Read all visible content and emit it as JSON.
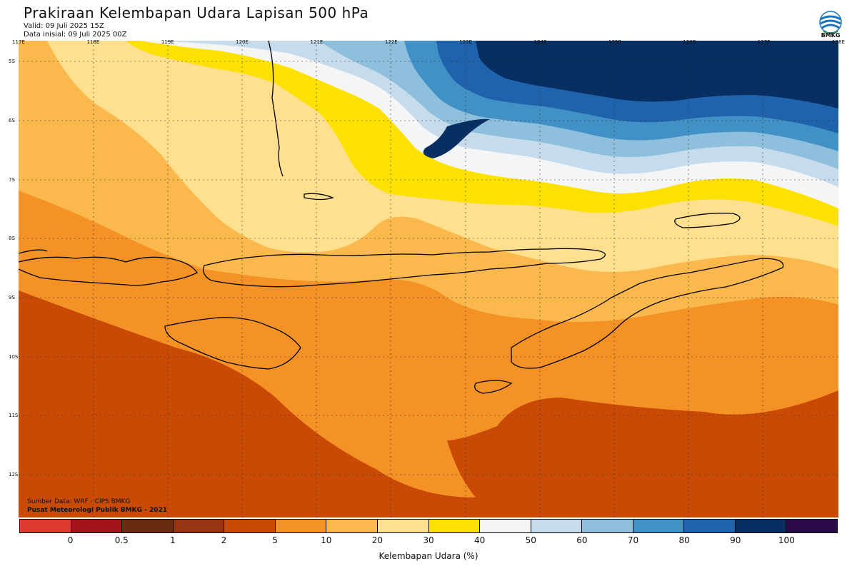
{
  "title": "Prakiraan Kelembapan Udara Lapisan 500 hPa",
  "valid": "Valid: 09 Juli 2025 15Z",
  "initial": "Data inisial: 09 Juli 2025 00Z",
  "logo_text": "BMKG",
  "source_line": "Sumber Data: WRF - CIPS BMKG",
  "org_line": "Pusat Meteorologi Publik BMKG - 2021",
  "lon_labels": [
    "117E",
    "118E",
    "119E",
    "120E",
    "121E",
    "122E",
    "123E",
    "124E",
    "125E",
    "126E",
    "127E",
    "128E"
  ],
  "lat_labels": [
    "5S",
    "6S",
    "7S",
    "8S",
    "9S",
    "10S",
    "11S",
    "12S"
  ],
  "colorbar": {
    "unit_label": "Kelembapan Udara (%)",
    "tick_labels": [
      "0",
      "0.5",
      "1",
      "2",
      "5",
      "10",
      "20",
      "30",
      "40",
      "50",
      "60",
      "70",
      "80",
      "90",
      "100"
    ],
    "colors": [
      "#dd3b32",
      "#a5141b",
      "#6b2a12",
      "#973414",
      "#c94a05",
      "#f49226",
      "#fbb84d",
      "#fee08f",
      "#fde100",
      "#f4f5f6",
      "#c6dbec",
      "#8ebfdc",
      "#4191c6",
      "#1f63ad",
      "#082f61",
      "#2b0b49"
    ]
  },
  "map_colors": {
    "lt5": "#c94a05",
    "r5_10": "#f49226",
    "r10_20": "#fbb84d",
    "r20_30": "#fee08f",
    "r30_40": "#fde100",
    "r40_50": "#f4f5f6",
    "r50_60": "#c6dbec",
    "r60_70": "#8ebfdc",
    "r70_80": "#4191c6",
    "r80_90": "#1f63ad",
    "r90_100": "#082f61"
  }
}
